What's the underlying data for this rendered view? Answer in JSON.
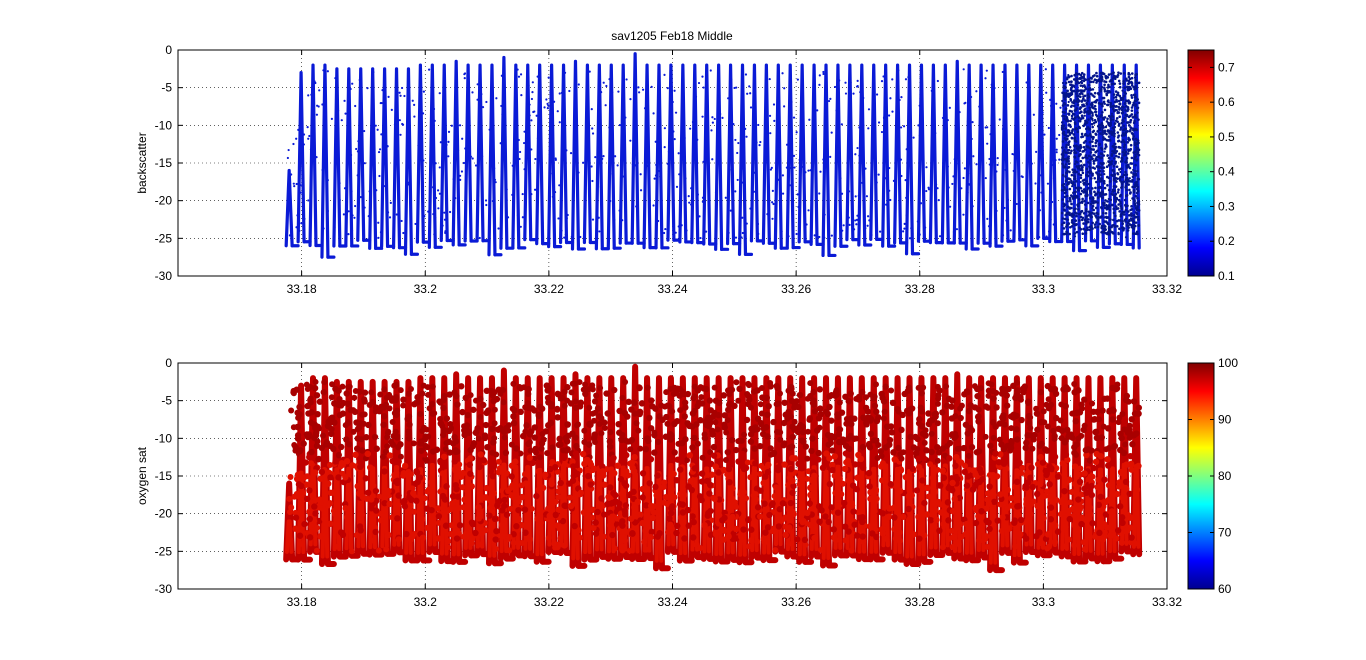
{
  "figure": {
    "background": "#ffffff"
  },
  "chart_data": [
    {
      "type": "scatter",
      "title": "sav1205 Feb18 Middle",
      "xlabel": "",
      "ylabel": "backscatter",
      "xlim": [
        33.16,
        33.32
      ],
      "ylim": [
        -30,
        0
      ],
      "xticks": [
        "33.18",
        "33.2",
        "33.22",
        "33.24",
        "33.26",
        "33.28",
        "33.3",
        "33.32"
      ],
      "xtick_values": [
        33.18,
        33.2,
        33.22,
        33.24,
        33.26,
        33.28,
        33.3,
        33.32
      ],
      "yticks": [
        "0",
        "-5",
        "-10",
        "-15",
        "-20",
        "-25",
        "-30"
      ],
      "ytick_values": [
        0,
        -5,
        -10,
        -15,
        -20,
        -25,
        -30
      ],
      "grid": true,
      "series": [
        {
          "x_range": [
            33.1775,
            33.3155
          ],
          "depth_top_typical": -2.5,
          "depth_bottom_typical": -25,
          "profile_peaks_y": [
            -16,
            -3,
            -2,
            -2,
            -2.5,
            -2.5,
            -2.5,
            -2.5,
            -2.5,
            -2.5,
            -2.5,
            -2,
            -2,
            -2,
            -1.5,
            -2,
            -2,
            -2,
            -1,
            -2,
            -2,
            -2,
            -2,
            -2,
            -1.5,
            -2,
            -2,
            -2,
            -2,
            -0.5,
            -2,
            -2,
            -2,
            -2,
            -2,
            -2,
            -2,
            -2,
            -2,
            -2,
            -2,
            -2,
            -2,
            -2,
            -2,
            -2,
            -2,
            -2,
            -2,
            -2,
            -2,
            -2,
            -2,
            -2,
            -2,
            -2,
            -1.5,
            -2,
            -2,
            -2,
            -2,
            -2,
            -2,
            -2,
            -2,
            -2,
            -2,
            -2,
            -2,
            -2,
            -2,
            -2
          ]
        }
      ],
      "colorbar": {
        "ticks": [
          "0.1",
          "0.2",
          "0.3",
          "0.4",
          "0.5",
          "0.6",
          "0.7"
        ],
        "tick_values": [
          0.1,
          0.2,
          0.3,
          0.4,
          0.5,
          0.6,
          0.7
        ],
        "range": [
          0.1,
          0.75
        ],
        "point_color": "#0a1ad6",
        "dense_color": "#04148c"
      }
    },
    {
      "type": "scatter",
      "title": "",
      "xlabel": "",
      "ylabel": "oxygen sat",
      "xlim": [
        33.16,
        33.32
      ],
      "ylim": [
        -30,
        0
      ],
      "xticks": [
        "33.18",
        "33.2",
        "33.22",
        "33.24",
        "33.26",
        "33.28",
        "33.3",
        "33.32"
      ],
      "xtick_values": [
        33.18,
        33.2,
        33.22,
        33.24,
        33.26,
        33.28,
        33.3,
        33.32
      ],
      "yticks": [
        "0",
        "-5",
        "-10",
        "-15",
        "-20",
        "-25",
        "-30"
      ],
      "ytick_values": [
        0,
        -5,
        -10,
        -15,
        -20,
        -25,
        -30
      ],
      "grid": true,
      "series": [
        {
          "x_range": [
            33.1775,
            33.3155
          ],
          "depth_top_typical": -2.5,
          "depth_bottom_typical": -25,
          "profile_peaks_y": [
            -16,
            -3,
            -2,
            -2,
            -2.5,
            -2.5,
            -2.5,
            -2.5,
            -2.5,
            -2.5,
            -2.5,
            -2,
            -2,
            -2,
            -1.5,
            -2,
            -2,
            -2,
            -1,
            -2,
            -2,
            -2,
            -2,
            -2,
            -1.5,
            -2,
            -2,
            -2,
            -2,
            -0.5,
            -2,
            -2,
            -2,
            -2,
            -2,
            -2,
            -2,
            -2,
            -2,
            -2,
            -2,
            -2,
            -2,
            -2,
            -2,
            -2,
            -2,
            -2,
            -2,
            -2,
            -2,
            -2,
            -2,
            -2,
            -2,
            -2,
            -1.5,
            -2,
            -2,
            -2,
            -2,
            -2,
            -2,
            -2,
            -2,
            -2,
            -2,
            -2,
            -2,
            -2,
            -2,
            -2
          ]
        }
      ],
      "colorbar": {
        "ticks": [
          "100",
          "90",
          "80",
          "70",
          "60"
        ],
        "tick_values": [
          100,
          90,
          80,
          70,
          60
        ],
        "range": [
          60,
          100
        ],
        "point_color": "#c00000",
        "shallow_color": "#a80000",
        "deep_color": "#e01000"
      }
    }
  ]
}
